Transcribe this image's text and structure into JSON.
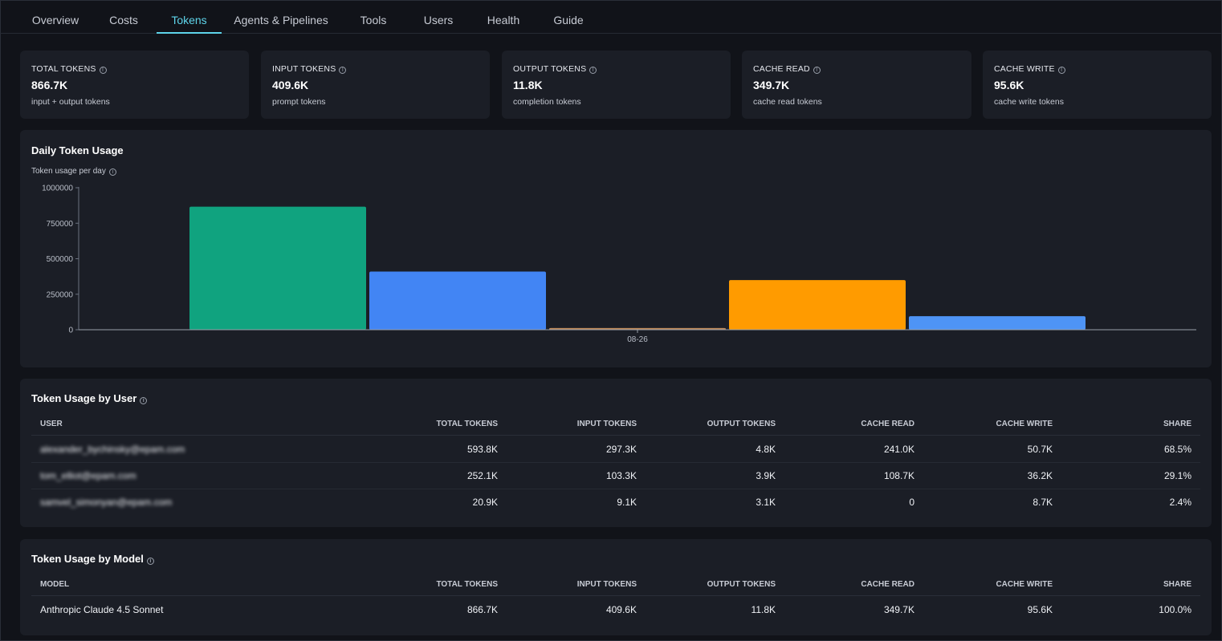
{
  "tabs": [
    {
      "label": "Overview"
    },
    {
      "label": "Costs"
    },
    {
      "label": "Tokens",
      "active": true
    },
    {
      "label": "Agents & Pipelines"
    },
    {
      "label": "Tools"
    },
    {
      "label": "Users"
    },
    {
      "label": "Health"
    },
    {
      "label": "Guide"
    }
  ],
  "kpis": [
    {
      "label": "TOTAL TOKENS",
      "value": "866.7K",
      "sub": "input + output tokens"
    },
    {
      "label": "INPUT TOKENS",
      "value": "409.6K",
      "sub": "prompt tokens"
    },
    {
      "label": "OUTPUT TOKENS",
      "value": "11.8K",
      "sub": "completion tokens"
    },
    {
      "label": "CACHE READ",
      "value": "349.7K",
      "sub": "cache read tokens"
    },
    {
      "label": "CACHE WRITE",
      "value": "95.6K",
      "sub": "cache write tokens"
    }
  ],
  "daily_chart": {
    "title": "Daily Token Usage",
    "subtitle": "Token usage per day"
  },
  "chart_data": {
    "type": "bar",
    "categories": [
      "08-26"
    ],
    "series": [
      {
        "values": [
          866700
        ],
        "color": "#10a37f"
      },
      {
        "values": [
          409600
        ],
        "color": "#4285f4"
      },
      {
        "values": [
          11800
        ],
        "color": "#c08a5a"
      },
      {
        "values": [
          349700
        ],
        "color": "#ff9b00"
      },
      {
        "values": [
          95600
        ],
        "color": "#4e94f6"
      }
    ],
    "yticks": [
      "0",
      "250000",
      "500000",
      "750000",
      "1000000"
    ],
    "ylim": [
      0,
      1000000
    ],
    "grid": false,
    "legend": "none"
  },
  "by_user": {
    "title": "Token Usage by User",
    "columns": [
      "USER",
      "TOTAL TOKENS",
      "INPUT TOKENS",
      "OUTPUT TOKENS",
      "CACHE READ",
      "CACHE WRITE",
      "SHARE"
    ],
    "rows": [
      [
        "alexander_bychinsky@epam.com",
        "593.8K",
        "297.3K",
        "4.8K",
        "241.0K",
        "50.7K",
        "68.5%"
      ],
      [
        "tom_elliot@epam.com",
        "252.1K",
        "103.3K",
        "3.9K",
        "108.7K",
        "36.2K",
        "29.1%"
      ],
      [
        "samvel_simonyan@epam.com",
        "20.9K",
        "9.1K",
        "3.1K",
        "0",
        "8.7K",
        "2.4%"
      ]
    ]
  },
  "by_model": {
    "title": "Token Usage by Model",
    "columns": [
      "MODEL",
      "TOTAL TOKENS",
      "INPUT TOKENS",
      "OUTPUT TOKENS",
      "CACHE READ",
      "CACHE WRITE",
      "SHARE"
    ],
    "rows": [
      [
        "Anthropic Claude 4.5 Sonnet",
        "866.7K",
        "409.6K",
        "11.8K",
        "349.7K",
        "95.6K",
        "100.0%"
      ]
    ]
  }
}
